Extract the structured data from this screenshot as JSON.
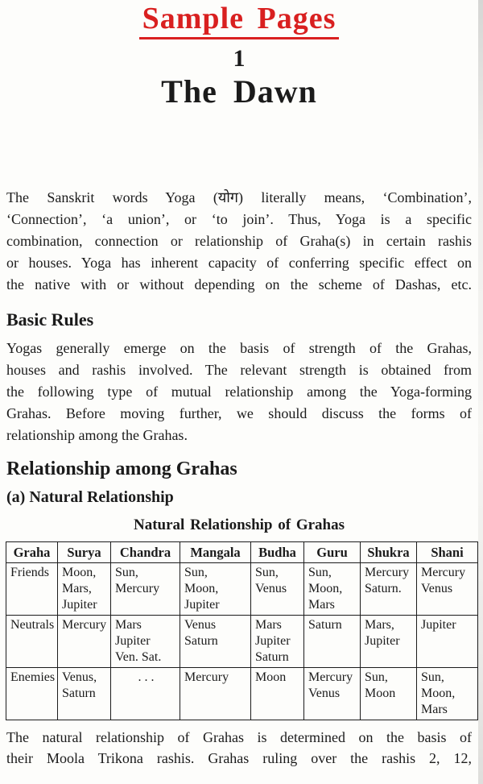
{
  "colors": {
    "accent_red": "#d92020",
    "text": "#1b1b1b"
  },
  "banner": {
    "text": "Sample Pages"
  },
  "chapter": {
    "number": "1",
    "title": "The Dawn"
  },
  "intro": {
    "lines": [
      "The Sanskrit words Yoga (योग) literally means, ‘Combination’,",
      "‘Connection’, ‘a union’, or ‘to join’. Thus, Yoga is a specific",
      "combination, connection or relationship of Graha(s) in certain rashis",
      "or houses. Yoga has inherent capacity of conferring specific effect on",
      "the native with or without depending on the scheme of Dashas, etc."
    ]
  },
  "basic_rules": {
    "heading": "Basic Rules",
    "lines": [
      "Yogas generally emerge on the basis of strength of the Grahas,",
      "houses and rashis involved. The relevant strength is obtained from",
      "the following type of mutual relationship among the Yoga-forming",
      "Grahas. Before moving further, we should discuss the forms of",
      "relationship among the Grahas."
    ]
  },
  "relationship": {
    "heading": "Relationship among Grahas",
    "subheading": "(a) Natural Relationship"
  },
  "grahas_table": {
    "title": "Natural Relationship of Grahas",
    "headers": [
      "Graha",
      "Surya",
      "Chandra",
      "Mangala",
      "Budha",
      "Guru",
      "Shukra",
      "Shani"
    ],
    "rows": [
      {
        "label": "Friends",
        "cells": [
          "Moon,\nMars,\nJupiter",
          "Sun,\nMercury",
          "Sun,\nMoon,\nJupiter",
          "Sun,\nVenus",
          "Sun,\nMoon,\nMars",
          "Mercury\nSaturn.",
          "Mercury\nVenus"
        ]
      },
      {
        "label": "Neutrals",
        "cells": [
          "Mercury",
          "Mars\nJupiter\nVen. Sat.",
          "Venus\nSaturn",
          "Mars\nJupiter\nSaturn",
          "Saturn",
          "Mars,\nJupiter",
          "Jupiter"
        ]
      },
      {
        "label": "Enemies",
        "cells": [
          "Venus,\nSaturn",
          ". . .",
          "Mercury",
          "Moon",
          "Mercury\nVenus",
          "Sun,\nMoon",
          "Sun,\nMoon,\nMars"
        ]
      }
    ]
  },
  "closing": {
    "lines": [
      "The natural relationship of Grahas is determined on the basis of",
      "their Moola Trikona rashis. Grahas ruling over the rashis 2, 12,"
    ]
  }
}
